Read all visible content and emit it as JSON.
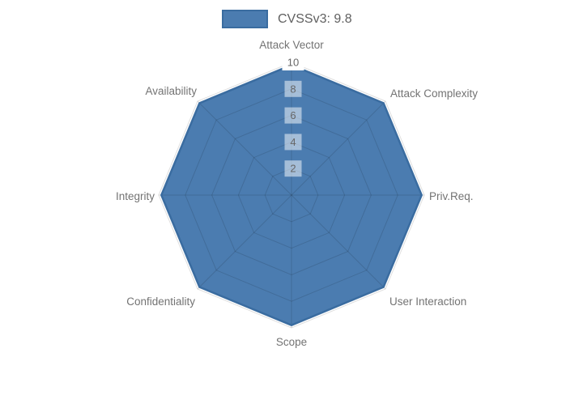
{
  "legend": {
    "series_label": "CVSSv3: 9.8"
  },
  "colors": {
    "fill": "#4b7cb0",
    "stroke": "#3a6ca0",
    "grid": "rgba(0,0,0,0.13)",
    "axis_label": "#737373",
    "tick_label": "#666666",
    "tick_bg": "rgba(255,255,255,0.5)",
    "tick_bg_outer": "#ffffff",
    "background": "#ffffff"
  },
  "chart_data": {
    "type": "radar",
    "title": "CVSSv3: 9.8",
    "categories": [
      "Attack Vector",
      "Attack Complexity",
      "Priv.Req.",
      "User Interaction",
      "Scope",
      "Confidentiality",
      "Integrity",
      "Availability"
    ],
    "series": [
      {
        "name": "CVSSv3: 9.8",
        "values": [
          9.8,
          9.8,
          9.8,
          9.8,
          9.8,
          9.8,
          9.8,
          9.8
        ]
      }
    ],
    "ticks": [
      "2",
      "4",
      "6",
      "8",
      "10"
    ],
    "tick_values": [
      2,
      4,
      6,
      8,
      10
    ],
    "rmax": 10,
    "grid": true,
    "legend_position": "top"
  }
}
